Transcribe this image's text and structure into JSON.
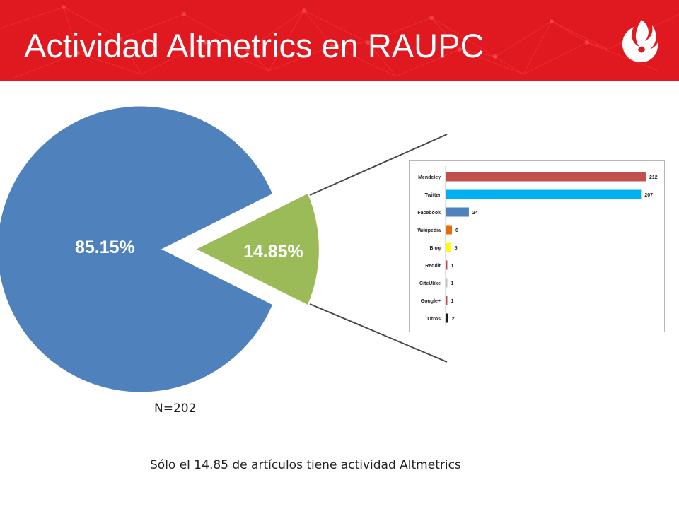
{
  "slide": {
    "title": "Actividad Altmetrics en RAUPC",
    "n_label": "N=202",
    "caption": "Sólo el 14.85 de artículos tiene actividad Altmetrics"
  },
  "colors": {
    "header": "#e0181f",
    "pie_main": "#4f81bd",
    "pie_exploded": "#9bbb59",
    "connector": "#4a4a4a"
  },
  "chart_data": [
    {
      "type": "pie",
      "slices": [
        {
          "label": "85.15%",
          "value": 85.15,
          "color": "#4f81bd"
        },
        {
          "label": "14.85%",
          "value": 14.85,
          "color": "#9bbb59",
          "exploded": true
        }
      ]
    },
    {
      "type": "bar",
      "orientation": "horizontal",
      "categories": [
        "Mendeley",
        "Twitter",
        "Facebook",
        "Wikipedia",
        "Blog",
        "Reddit",
        "CiteUlike",
        "Google+",
        "Otros"
      ],
      "values": [
        212,
        207,
        24,
        6,
        5,
        1,
        1,
        1,
        2
      ],
      "colors": [
        "#c0504d",
        "#00b0f0",
        "#4f81bd",
        "#e46c0a",
        "#ffff00",
        "#c0504d",
        "#bfbfbf",
        "#c0504d",
        "#1a1a1a"
      ],
      "xlim": [
        0,
        212
      ]
    }
  ]
}
